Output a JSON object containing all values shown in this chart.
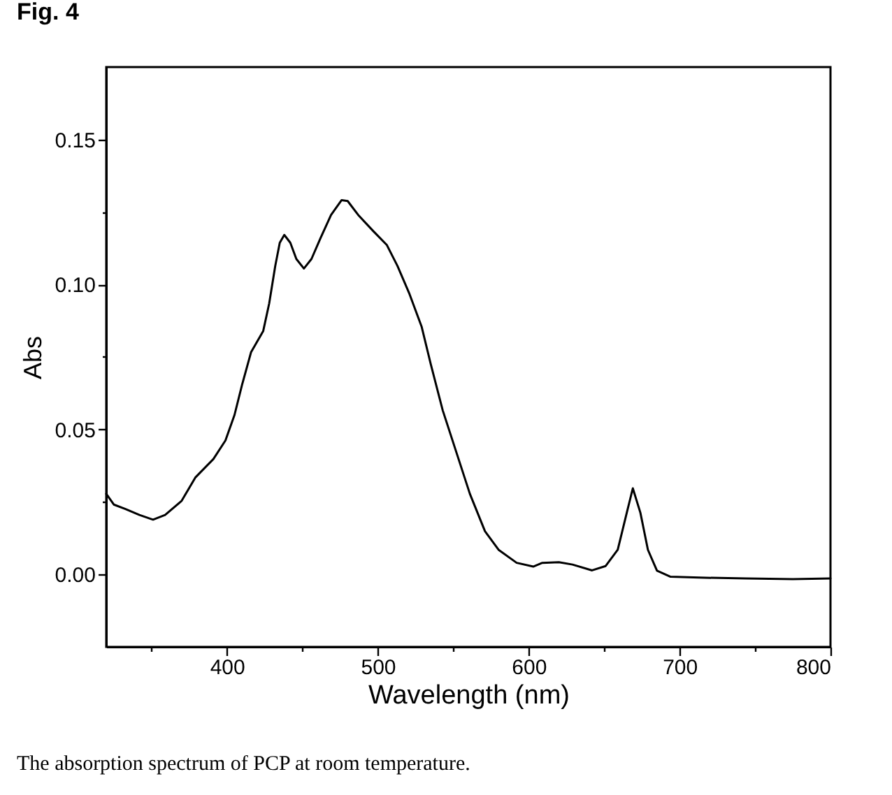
{
  "chart_data": {
    "type": "line",
    "title": "Fig. 4",
    "xlabel": "Wavelength (nm)",
    "ylabel": "Abs",
    "annotations": [
      "The absorption spectrum of PCP at room temperature."
    ],
    "x": [
      320,
      325,
      333,
      342,
      351,
      359,
      370,
      379,
      391,
      399,
      405,
      410,
      416,
      424,
      428,
      432,
      435,
      438,
      442,
      446,
      451,
      456,
      462,
      469,
      476,
      480,
      487,
      497,
      506,
      513,
      521,
      529,
      535,
      543,
      552,
      561,
      571,
      580,
      592,
      603,
      609,
      620,
      629,
      642,
      651,
      659,
      665,
      669,
      674,
      679,
      685,
      694,
      713,
      744,
      775,
      800
    ],
    "series": [
      {
        "color": "#000000",
        "values": [
          0.0278,
          0.0241,
          0.0225,
          0.0205,
          0.0189,
          0.0205,
          0.0254,
          0.0334,
          0.0398,
          0.0462,
          0.055,
          0.0654,
          0.0767,
          0.0839,
          0.0935,
          0.1064,
          0.1144,
          0.1171,
          0.1144,
          0.1088,
          0.1055,
          0.1088,
          0.116,
          0.124,
          0.1291,
          0.1288,
          0.124,
          0.1184,
          0.1136,
          0.1064,
          0.0967,
          0.0855,
          0.0727,
          0.0566,
          0.0422,
          0.0278,
          0.0149,
          0.0085,
          0.004,
          0.0027,
          0.004,
          0.0042,
          0.0034,
          0.0014,
          0.0029,
          0.0085,
          0.0213,
          0.0297,
          0.0213,
          0.0085,
          0.0013,
          -0.0008,
          -0.0011,
          -0.0014,
          -0.0016,
          -0.0014
        ]
      }
    ],
    "xlim": [
      320,
      800
    ],
    "ylim": [
      -0.025,
      0.175
    ],
    "xticks": [
      {
        "value": 350,
        "label": null
      },
      400,
      {
        "value": 450,
        "label": null
      },
      500,
      {
        "value": 550,
        "label": null
      },
      600,
      {
        "value": 650,
        "label": null
      },
      700,
      {
        "value": 750,
        "label": null
      },
      800
    ],
    "yticks": [
      {
        "value": 0,
        "label": "0.00"
      },
      {
        "value": 0.025,
        "label": null
      },
      0.05,
      {
        "value": 0.075,
        "label": null
      },
      {
        "value": 0.1,
        "label": "0.10"
      },
      {
        "value": 0.125,
        "label": null
      },
      0.15
    ]
  }
}
